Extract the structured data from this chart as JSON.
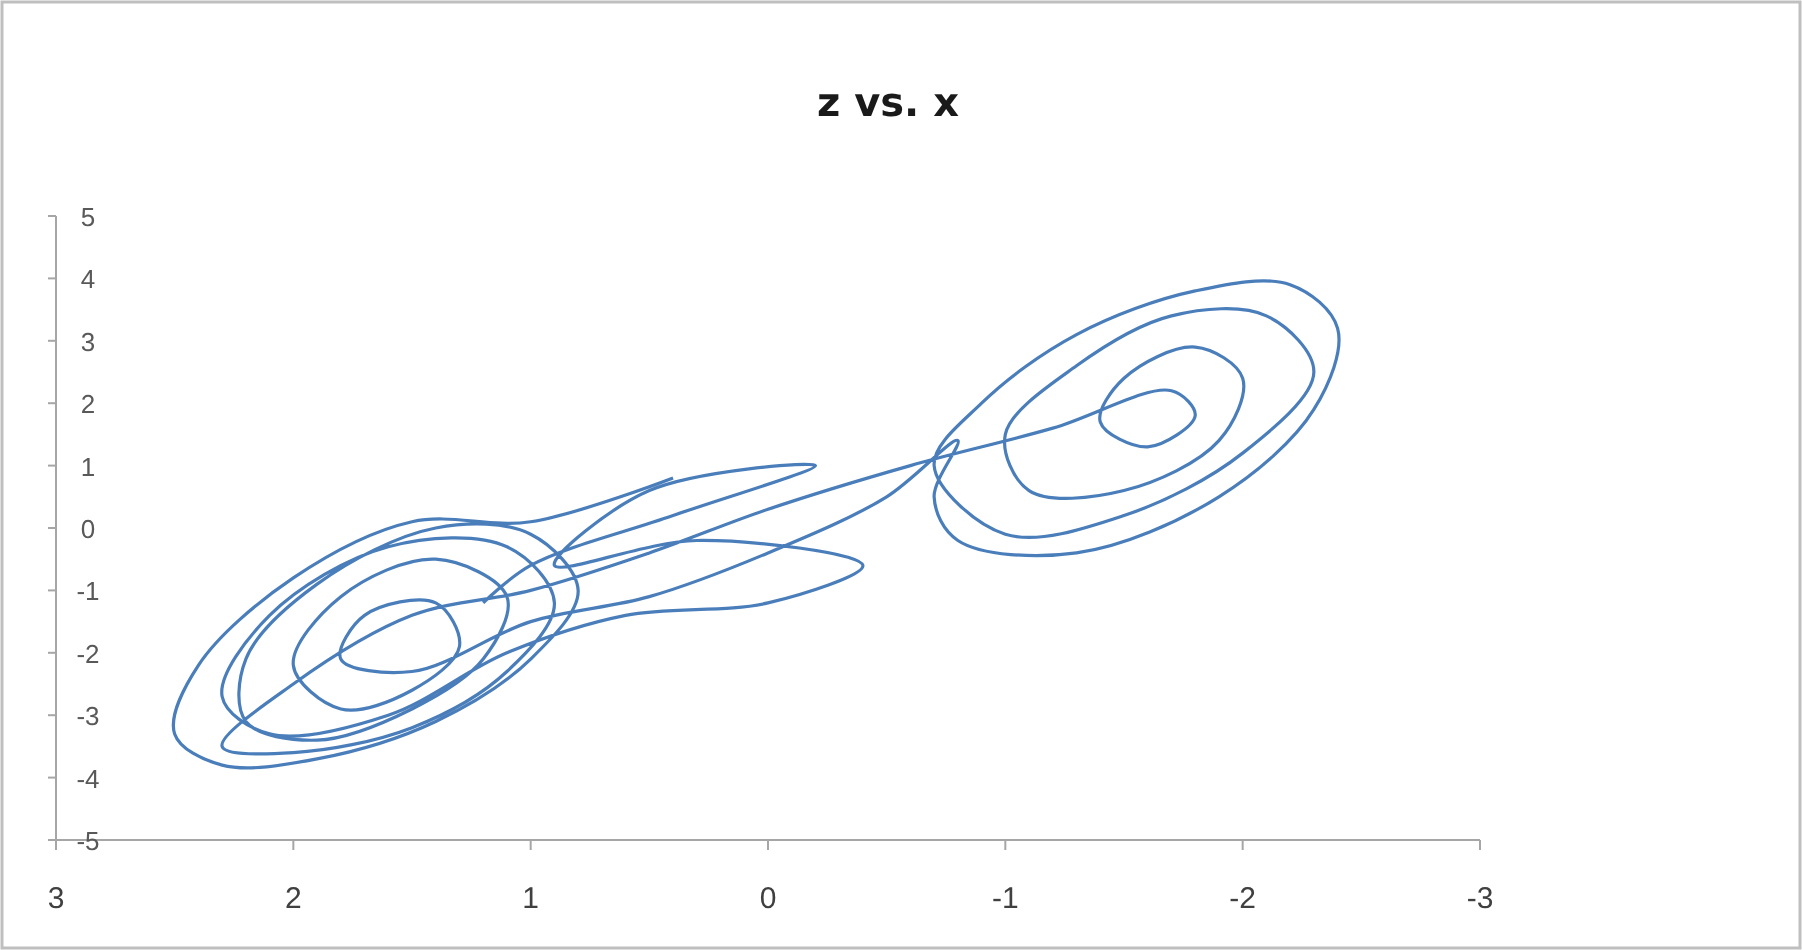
{
  "chart_data": {
    "type": "line",
    "title": "z vs. x",
    "xlim": [
      3,
      -3
    ],
    "xticks": [
      3,
      2,
      1,
      0,
      -1,
      -2,
      -3
    ],
    "ylim": [
      -5,
      5
    ],
    "yticks": [
      5,
      4,
      3,
      2,
      1,
      0,
      -1,
      -2,
      -3,
      -4,
      -5
    ],
    "marker": "none",
    "line_style": "solid",
    "series": [
      {
        "color": "#4a7ebb",
        "x": [
          0.4,
          1.0,
          1.5,
          2.0,
          2.4,
          2.5,
          2.3,
          1.9,
          1.4,
          1.0,
          0.8,
          1.0,
          1.4,
          1.9,
          2.2,
          2.2,
          1.9,
          1.5,
          1.2,
          1.1,
          1.4,
          1.8,
          2.0,
          1.8,
          1.5,
          1.3,
          1.4,
          1.7,
          1.8,
          1.5,
          1.0,
          0.5,
          0.0,
          -0.5,
          -0.8,
          -0.7,
          -0.8,
          -1.3,
          -1.9,
          -2.3,
          -2.4,
          -2.2,
          -1.8,
          -1.3,
          -0.9,
          -0.7,
          -1.0,
          -1.5,
          -2.0,
          -2.3,
          -2.1,
          -1.7,
          -1.3,
          -1.0,
          -1.1,
          -1.5,
          -1.9,
          -2.0,
          -1.8,
          -1.5,
          -1.4,
          -1.6,
          -1.8,
          -1.7,
          -1.2,
          -0.6,
          0.0,
          0.5,
          1.0,
          1.5,
          2.0,
          2.3,
          2.0,
          1.5,
          1.1,
          0.9,
          1.1,
          1.6,
          2.1,
          2.3,
          2.1,
          1.6,
          1.1,
          0.6,
          0.0,
          -0.4,
          0.3,
          0.9,
          0.5,
          -0.2,
          0.4,
          1.0,
          1.2
        ],
        "values": [
          0.8,
          0.1,
          0.1,
          -0.8,
          -2.2,
          -3.3,
          -3.8,
          -3.7,
          -3.1,
          -2.1,
          -1.0,
          -0.1,
          0.0,
          -0.9,
          -2.1,
          -3.1,
          -3.4,
          -2.9,
          -2.1,
          -1.1,
          -0.5,
          -1.1,
          -2.2,
          -2.9,
          -2.6,
          -1.9,
          -1.2,
          -1.4,
          -2.1,
          -2.3,
          -1.5,
          -1.1,
          -0.4,
          0.5,
          1.4,
          0.5,
          -0.2,
          -0.4,
          0.5,
          1.9,
          3.2,
          3.9,
          3.8,
          3.1,
          2.0,
          1.0,
          -0.1,
          0.2,
          1.2,
          2.5,
          3.4,
          3.4,
          2.6,
          1.5,
          0.6,
          0.6,
          1.4,
          2.4,
          2.9,
          2.4,
          1.7,
          1.3,
          1.8,
          2.2,
          1.6,
          1.0,
          0.3,
          -0.4,
          -1.0,
          -1.4,
          -2.5,
          -3.5,
          -3.6,
          -3.2,
          -2.3,
          -1.2,
          -0.3,
          -0.3,
          -1.4,
          -2.7,
          -3.3,
          -3.0,
          -2.0,
          -1.4,
          -1.2,
          -0.6,
          -0.2,
          -0.6,
          0.6,
          1.0,
          0.2,
          -0.6,
          -1.2
        ]
      }
    ]
  }
}
